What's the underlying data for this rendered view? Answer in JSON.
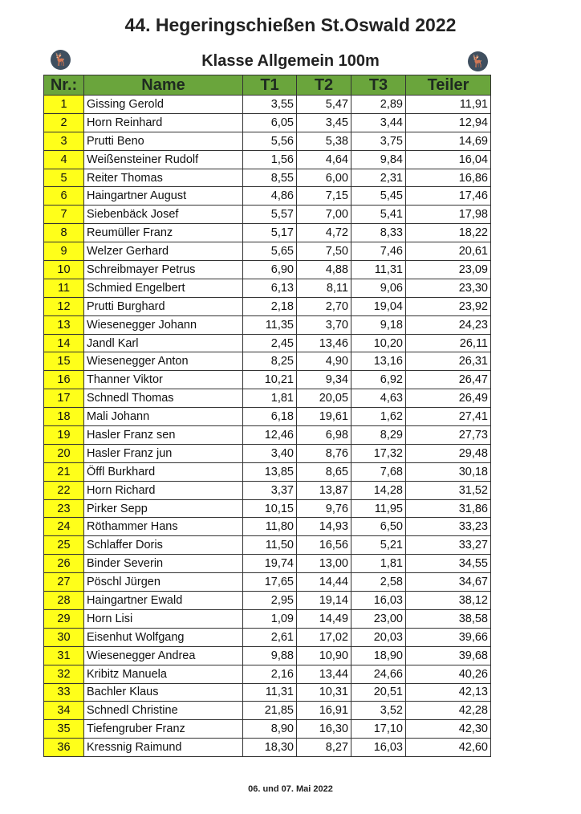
{
  "title": "44. Hegeringschießen St.Oswald 2022",
  "subtitle": "Klasse Allgemein 100m",
  "icons": {
    "left": "deer-emblem-icon",
    "right": "deer-emblem-icon"
  },
  "colors": {
    "header_bg": "#6aa53c",
    "rank_bg": "#ffff1a"
  },
  "table": {
    "headers": [
      "Nr.:",
      "Name",
      "T1",
      "T2",
      "T3",
      "Teiler"
    ],
    "rows": [
      [
        "1",
        "Gissing Gerold",
        "3,55",
        "5,47",
        "2,89",
        "11,91"
      ],
      [
        "2",
        "Horn Reinhard",
        "6,05",
        "3,45",
        "3,44",
        "12,94"
      ],
      [
        "3",
        "Prutti Beno",
        "5,56",
        "5,38",
        "3,75",
        "14,69"
      ],
      [
        "4",
        "Weißensteiner Rudolf",
        "1,56",
        "4,64",
        "9,84",
        "16,04"
      ],
      [
        "5",
        "Reiter Thomas",
        "8,55",
        "6,00",
        "2,31",
        "16,86"
      ],
      [
        "6",
        "Haingartner August",
        "4,86",
        "7,15",
        "5,45",
        "17,46"
      ],
      [
        "7",
        "Siebenbäck Josef",
        "5,57",
        "7,00",
        "5,41",
        "17,98"
      ],
      [
        "8",
        "Reumüller Franz",
        "5,17",
        "4,72",
        "8,33",
        "18,22"
      ],
      [
        "9",
        "Welzer Gerhard",
        "5,65",
        "7,50",
        "7,46",
        "20,61"
      ],
      [
        "10",
        "Schreibmayer Petrus",
        "6,90",
        "4,88",
        "11,31",
        "23,09"
      ],
      [
        "11",
        "Schmied Engelbert",
        "6,13",
        "8,11",
        "9,06",
        "23,30"
      ],
      [
        "12",
        "Prutti Burghard",
        "2,18",
        "2,70",
        "19,04",
        "23,92"
      ],
      [
        "13",
        "Wiesenegger Johann",
        "11,35",
        "3,70",
        "9,18",
        "24,23"
      ],
      [
        "14",
        "Jandl Karl",
        "2,45",
        "13,46",
        "10,20",
        "26,11"
      ],
      [
        "15",
        "Wiesenegger Anton",
        "8,25",
        "4,90",
        "13,16",
        "26,31"
      ],
      [
        "16",
        "Thanner Viktor",
        "10,21",
        "9,34",
        "6,92",
        "26,47"
      ],
      [
        "17",
        "Schnedl Thomas",
        "1,81",
        "20,05",
        "4,63",
        "26,49"
      ],
      [
        "18",
        "Mali Johann",
        "6,18",
        "19,61",
        "1,62",
        "27,41"
      ],
      [
        "19",
        "Hasler Franz sen",
        "12,46",
        "6,98",
        "8,29",
        "27,73"
      ],
      [
        "20",
        "Hasler Franz jun",
        "3,40",
        "8,76",
        "17,32",
        "29,48"
      ],
      [
        "21",
        "Öffl Burkhard",
        "13,85",
        "8,65",
        "7,68",
        "30,18"
      ],
      [
        "22",
        "Horn Richard",
        "3,37",
        "13,87",
        "14,28",
        "31,52"
      ],
      [
        "23",
        "Pirker Sepp",
        "10,15",
        "9,76",
        "11,95",
        "31,86"
      ],
      [
        "24",
        "Röthammer Hans",
        "11,80",
        "14,93",
        "6,50",
        "33,23"
      ],
      [
        "25",
        "Schlaffer Doris",
        "11,50",
        "16,56",
        "5,21",
        "33,27"
      ],
      [
        "26",
        "Binder Severin",
        "19,74",
        "13,00",
        "1,81",
        "34,55"
      ],
      [
        "27",
        "Pöschl Jürgen",
        "17,65",
        "14,44",
        "2,58",
        "34,67"
      ],
      [
        "28",
        "Haingartner Ewald",
        "2,95",
        "19,14",
        "16,03",
        "38,12"
      ],
      [
        "29",
        "Horn Lisi",
        "1,09",
        "14,49",
        "23,00",
        "38,58"
      ],
      [
        "30",
        "Eisenhut Wolfgang",
        "2,61",
        "17,02",
        "20,03",
        "39,66"
      ],
      [
        "31",
        "Wiesenegger Andrea",
        "9,88",
        "10,90",
        "18,90",
        "39,68"
      ],
      [
        "32",
        "Kribitz Manuela",
        "2,16",
        "13,44",
        "24,66",
        "40,26"
      ],
      [
        "33",
        "Bachler Klaus",
        "11,31",
        "10,31",
        "20,51",
        "42,13"
      ],
      [
        "34",
        "Schnedl Christine",
        "21,85",
        "16,91",
        "3,52",
        "42,28"
      ],
      [
        "35",
        "Tiefengruber Franz",
        "8,90",
        "16,30",
        "17,10",
        "42,30"
      ],
      [
        "36",
        "Kressnig Raimund",
        "18,30",
        "8,27",
        "16,03",
        "42,60"
      ]
    ]
  },
  "footer": "06. und 07. Mai 2022"
}
